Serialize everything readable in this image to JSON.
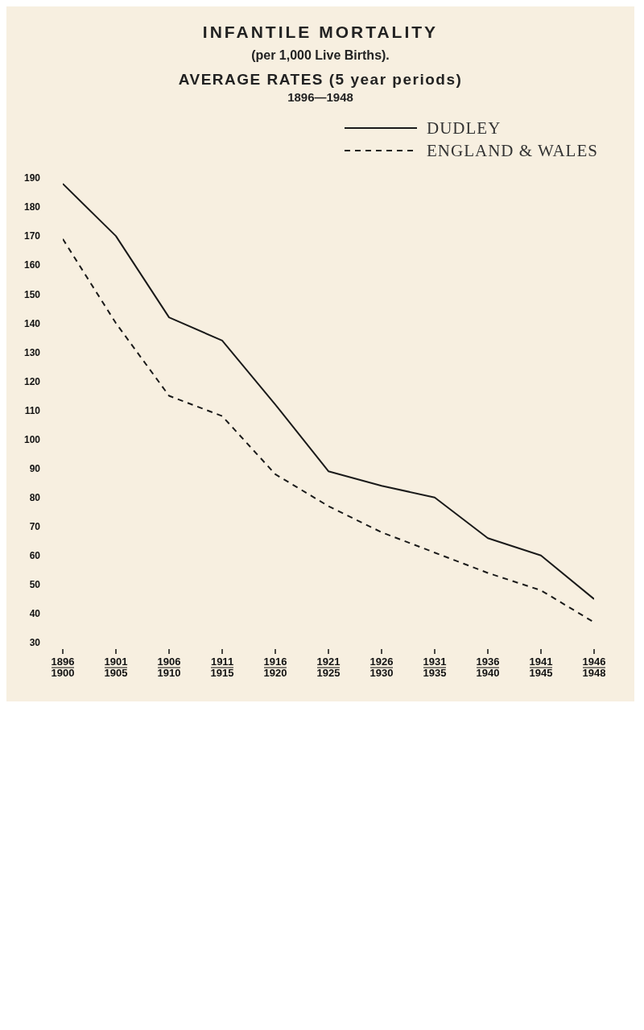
{
  "chart_data": {
    "type": "line",
    "title": "INFANTILE MORTALITY",
    "subtitle": "(per 1,000 Live Births).",
    "annotations": [
      "AVERAGE RATES (5 year periods)",
      "1896—1948"
    ],
    "categories": [
      "1896\n1900",
      "1901\n1905",
      "1906\n1910",
      "1911\n1915",
      "1916\n1920",
      "1921\n1925",
      "1926\n1930",
      "1931\n1935",
      "1936\n1940",
      "1941\n1945",
      "1946\n1948"
    ],
    "series": [
      {
        "name": "DUDLEY",
        "color": "#1a1a1a",
        "line_style": "solid",
        "values": [
          188,
          170,
          142,
          134,
          112,
          89,
          84,
          80,
          66,
          60,
          45
        ]
      },
      {
        "name": "ENGLAND & WALES",
        "color": "#1a1a1a",
        "line_style": "dashed",
        "values": [
          169,
          140,
          115,
          108,
          88,
          77,
          68,
          61,
          54,
          48,
          37
        ]
      }
    ],
    "ylim": [
      30,
      190
    ],
    "yticks": [
      30,
      40,
      50,
      60,
      70,
      80,
      90,
      100,
      110,
      120,
      130,
      140,
      150,
      160,
      170,
      180,
      190
    ],
    "grid": false,
    "legend": "top right",
    "marker": "none"
  }
}
